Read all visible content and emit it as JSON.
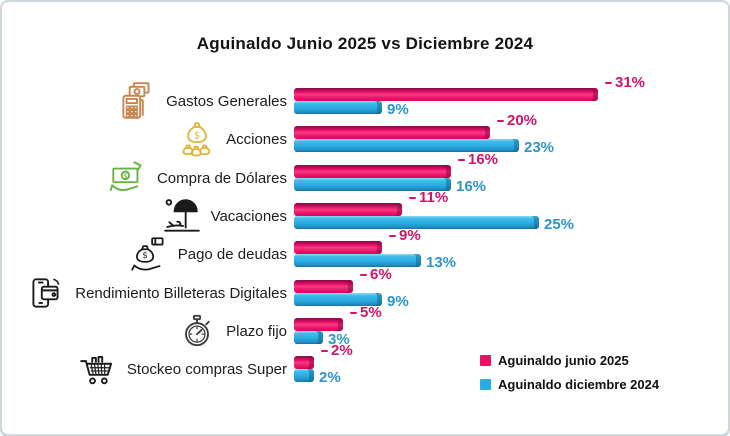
{
  "title": "Aguinaldo Junio 2025 vs Diciembre 2024",
  "chart_data": {
    "type": "bar",
    "orientation": "horizontal",
    "title": "Aguinaldo Junio 2025 vs Diciembre 2024",
    "categories": [
      "Gastos Generales",
      "Acciones",
      "Compra de Dólares",
      "Vacaciones",
      "Pago de deudas",
      "Rendimiento Billeteras Digitales",
      "Plazo fijo",
      "Stockeo compras Super"
    ],
    "series": [
      {
        "name": "Aguinaldo junio 2025",
        "color": "#EC1066",
        "label_color": "#D4146A",
        "values": [
          31,
          20,
          16,
          11,
          9,
          6,
          5,
          2
        ]
      },
      {
        "name": "Aguinaldo diciembre 2024",
        "color": "#29ACE3",
        "label_color": "#2C95CE",
        "values": [
          9,
          23,
          16,
          25,
          13,
          9,
          3,
          2
        ]
      }
    ],
    "value_suffix": "%",
    "xlim": [
      0,
      33
    ],
    "grid": false,
    "legend_position": "bottom-right",
    "icons": [
      {
        "name": "pos-terminal-icon",
        "color": "#C8854E"
      },
      {
        "name": "money-bag-icon",
        "color": "#E2B332"
      },
      {
        "name": "cash-hand-icon",
        "color": "#67B345"
      },
      {
        "name": "beach-umbrella-icon",
        "color": "#1A1A1A"
      },
      {
        "name": "debt-payment-icon",
        "color": "#1A1A1A"
      },
      {
        "name": "digital-wallet-icon",
        "color": "#1A1A1A"
      },
      {
        "name": "stopwatch-icon",
        "color": "#3D3D3D"
      },
      {
        "name": "shopping-cart-icon",
        "color": "#1A1A1A"
      }
    ]
  }
}
